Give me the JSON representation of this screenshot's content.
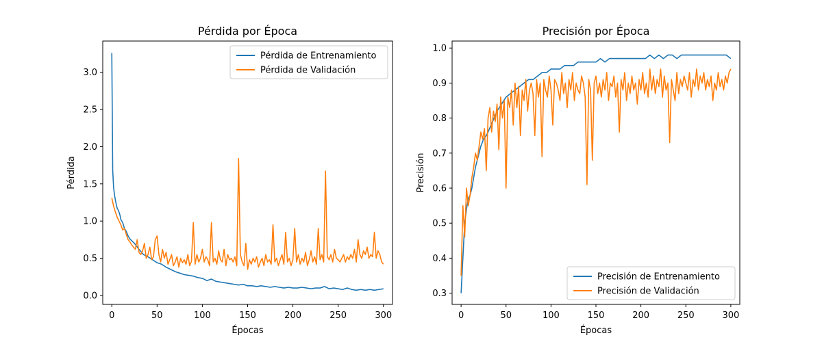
{
  "chart_data": [
    {
      "type": "line",
      "title": "Pérdida por Época",
      "xlabel": "Épocas",
      "ylabel": "Pérdida",
      "xlim": [
        -10,
        310
      ],
      "ylim": [
        -0.12,
        3.42
      ],
      "xticks": [
        0,
        50,
        100,
        150,
        200,
        250,
        300
      ],
      "yticks": [
        0.0,
        0.5,
        1.0,
        1.5,
        2.0,
        2.5,
        3.0
      ],
      "ytick_labels": [
        "0.0",
        "0.5",
        "1.0",
        "1.5",
        "2.0",
        "2.5",
        "3.0"
      ],
      "legend_position": "upper right",
      "grid": false,
      "series": [
        {
          "name": "Pérdida de Entrenamiento",
          "color": "#1f77b4",
          "x": [
            0,
            1,
            2,
            3,
            4,
            5,
            6,
            7,
            8,
            9,
            10,
            12,
            14,
            16,
            18,
            20,
            25,
            30,
            35,
            40,
            45,
            50,
            55,
            60,
            65,
            70,
            75,
            80,
            85,
            90,
            95,
            100,
            105,
            110,
            115,
            120,
            125,
            130,
            135,
            140,
            145,
            150,
            155,
            160,
            165,
            170,
            175,
            180,
            185,
            190,
            195,
            200,
            205,
            210,
            215,
            220,
            225,
            230,
            235,
            240,
            245,
            250,
            255,
            260,
            265,
            270,
            275,
            280,
            285,
            290,
            295,
            300
          ],
          "values": [
            3.26,
            1.68,
            1.45,
            1.35,
            1.28,
            1.22,
            1.17,
            1.15,
            1.12,
            1.08,
            1.02,
            0.98,
            0.9,
            0.86,
            0.8,
            0.76,
            0.7,
            0.62,
            0.55,
            0.52,
            0.48,
            0.44,
            0.42,
            0.38,
            0.35,
            0.32,
            0.3,
            0.28,
            0.27,
            0.26,
            0.24,
            0.23,
            0.2,
            0.22,
            0.19,
            0.18,
            0.17,
            0.16,
            0.15,
            0.14,
            0.15,
            0.13,
            0.13,
            0.12,
            0.13,
            0.12,
            0.11,
            0.12,
            0.11,
            0.1,
            0.11,
            0.1,
            0.1,
            0.11,
            0.1,
            0.09,
            0.1,
            0.1,
            0.12,
            0.09,
            0.1,
            0.09,
            0.08,
            0.1,
            0.08,
            0.07,
            0.08,
            0.07,
            0.08,
            0.07,
            0.08,
            0.09
          ]
        },
        {
          "name": "Pérdida de Validación",
          "color": "#ff7f0e",
          "x": [
            0,
            2,
            4,
            6,
            8,
            10,
            12,
            14,
            16,
            18,
            20,
            22,
            24,
            26,
            28,
            30,
            32,
            34,
            36,
            38,
            40,
            42,
            44,
            46,
            48,
            50,
            52,
            54,
            56,
            58,
            60,
            62,
            64,
            66,
            68,
            70,
            72,
            74,
            76,
            78,
            80,
            82,
            84,
            86,
            88,
            90,
            92,
            94,
            96,
            98,
            100,
            102,
            104,
            106,
            108,
            110,
            112,
            114,
            116,
            118,
            120,
            122,
            124,
            126,
            128,
            130,
            132,
            134,
            136,
            138,
            140,
            142,
            144,
            146,
            148,
            150,
            152,
            154,
            156,
            158,
            160,
            162,
            164,
            166,
            168,
            170,
            172,
            174,
            176,
            178,
            180,
            182,
            184,
            186,
            188,
            190,
            192,
            194,
            196,
            198,
            200,
            202,
            204,
            206,
            208,
            210,
            212,
            214,
            216,
            218,
            220,
            222,
            224,
            226,
            228,
            230,
            232,
            234,
            236,
            238,
            240,
            242,
            244,
            246,
            248,
            250,
            252,
            254,
            256,
            258,
            260,
            262,
            264,
            266,
            268,
            270,
            272,
            274,
            276,
            278,
            280,
            282,
            284,
            286,
            288,
            290,
            292,
            294,
            296,
            298,
            300
          ],
          "values": [
            1.31,
            1.2,
            1.12,
            1.05,
            1.0,
            0.95,
            0.88,
            0.9,
            0.82,
            0.75,
            0.72,
            0.68,
            0.65,
            0.62,
            0.75,
            0.58,
            0.55,
            0.6,
            0.7,
            0.5,
            0.55,
            0.65,
            0.48,
            0.52,
            0.75,
            0.8,
            0.55,
            0.45,
            0.62,
            0.5,
            0.58,
            0.42,
            0.48,
            0.55,
            0.4,
            0.45,
            0.52,
            0.38,
            0.5,
            0.44,
            0.48,
            0.42,
            0.55,
            0.4,
            0.46,
            0.98,
            0.42,
            0.55,
            0.45,
            0.5,
            0.62,
            0.45,
            0.52,
            0.48,
            0.4,
            0.98,
            0.45,
            0.5,
            0.42,
            0.6,
            0.48,
            0.45,
            0.62,
            0.4,
            0.55,
            0.48,
            0.5,
            0.45,
            0.52,
            0.4,
            1.84,
            0.55,
            0.45,
            0.4,
            0.7,
            0.35,
            0.48,
            0.42,
            0.5,
            0.45,
            0.52,
            0.38,
            0.45,
            0.5,
            0.4,
            0.55,
            0.45,
            0.48,
            0.42,
            0.95,
            0.45,
            0.5,
            0.4,
            0.48,
            0.55,
            0.42,
            0.85,
            0.45,
            0.5,
            0.4,
            0.48,
            0.9,
            0.45,
            0.55,
            0.42,
            0.5,
            0.45,
            0.58,
            0.4,
            0.48,
            0.6,
            0.45,
            0.52,
            0.42,
            0.9,
            0.48,
            0.55,
            0.45,
            1.67,
            0.52,
            0.48,
            0.55,
            0.45,
            0.62,
            0.5,
            0.48,
            0.45,
            0.5,
            0.55,
            0.45,
            0.52,
            0.48,
            0.55,
            0.5,
            0.62,
            0.45,
            0.75,
            0.55,
            0.5,
            0.6,
            0.55,
            0.65,
            0.5,
            0.55,
            0.52,
            0.85,
            0.5,
            0.6,
            0.55,
            0.45,
            0.42
          ]
        }
      ]
    },
    {
      "type": "line",
      "title": "Precisión por Época",
      "xlabel": "Épocas",
      "ylabel": "Precisión",
      "xlim": [
        -10,
        310
      ],
      "ylim": [
        0.268,
        1.02
      ],
      "xticks": [
        0,
        50,
        100,
        150,
        200,
        250,
        300
      ],
      "yticks": [
        0.3,
        0.4,
        0.5,
        0.6,
        0.7,
        0.8,
        0.9,
        1.0
      ],
      "ytick_labels": [
        "0.3",
        "0.4",
        "0.5",
        "0.6",
        "0.7",
        "0.8",
        "0.9",
        "1.0"
      ],
      "legend_position": "lower right",
      "grid": false,
      "series": [
        {
          "name": "Precisión de Entrenamiento",
          "color": "#1f77b4",
          "x": [
            0,
            2,
            4,
            6,
            8,
            10,
            12,
            14,
            16,
            18,
            20,
            22,
            25,
            28,
            30,
            35,
            40,
            45,
            50,
            55,
            60,
            65,
            70,
            75,
            80,
            85,
            90,
            95,
            100,
            105,
            110,
            115,
            120,
            125,
            130,
            135,
            140,
            145,
            150,
            155,
            160,
            165,
            170,
            175,
            180,
            185,
            190,
            195,
            200,
            205,
            210,
            215,
            220,
            225,
            230,
            235,
            240,
            245,
            250,
            255,
            260,
            265,
            270,
            275,
            280,
            285,
            290,
            295,
            300
          ],
          "values": [
            0.3,
            0.4,
            0.5,
            0.54,
            0.57,
            0.58,
            0.6,
            0.63,
            0.66,
            0.68,
            0.7,
            0.72,
            0.74,
            0.75,
            0.76,
            0.79,
            0.82,
            0.84,
            0.86,
            0.87,
            0.88,
            0.89,
            0.9,
            0.91,
            0.91,
            0.92,
            0.93,
            0.93,
            0.94,
            0.94,
            0.94,
            0.95,
            0.95,
            0.95,
            0.96,
            0.96,
            0.96,
            0.96,
            0.96,
            0.97,
            0.96,
            0.97,
            0.97,
            0.97,
            0.97,
            0.97,
            0.97,
            0.97,
            0.97,
            0.97,
            0.98,
            0.97,
            0.98,
            0.97,
            0.98,
            0.98,
            0.97,
            0.98,
            0.98,
            0.98,
            0.98,
            0.98,
            0.98,
            0.98,
            0.98,
            0.98,
            0.98,
            0.98,
            0.97
          ]
        },
        {
          "name": "Precisión de Validación",
          "color": "#ff7f0e",
          "x": [
            0,
            2,
            4,
            6,
            8,
            10,
            12,
            14,
            16,
            18,
            20,
            22,
            24,
            26,
            28,
            30,
            32,
            34,
            36,
            38,
            40,
            42,
            44,
            46,
            48,
            50,
            52,
            54,
            56,
            58,
            60,
            62,
            64,
            66,
            68,
            70,
            72,
            74,
            76,
            78,
            80,
            82,
            84,
            86,
            88,
            90,
            92,
            94,
            96,
            98,
            100,
            102,
            104,
            106,
            108,
            110,
            112,
            114,
            116,
            118,
            120,
            122,
            124,
            126,
            128,
            130,
            132,
            134,
            136,
            138,
            140,
            142,
            144,
            146,
            148,
            150,
            152,
            154,
            156,
            158,
            160,
            162,
            164,
            166,
            168,
            170,
            172,
            174,
            176,
            178,
            180,
            182,
            184,
            186,
            188,
            190,
            192,
            194,
            196,
            198,
            200,
            202,
            204,
            206,
            208,
            210,
            212,
            214,
            216,
            218,
            220,
            222,
            224,
            226,
            228,
            230,
            232,
            234,
            236,
            238,
            240,
            242,
            244,
            246,
            248,
            250,
            252,
            254,
            256,
            258,
            260,
            262,
            264,
            266,
            268,
            270,
            272,
            274,
            276,
            278,
            280,
            282,
            284,
            286,
            288,
            290,
            292,
            294,
            296,
            298,
            300
          ],
          "values": [
            0.35,
            0.55,
            0.46,
            0.6,
            0.55,
            0.58,
            0.63,
            0.66,
            0.7,
            0.68,
            0.72,
            0.76,
            0.74,
            0.77,
            0.65,
            0.8,
            0.83,
            0.76,
            0.82,
            0.79,
            0.84,
            0.71,
            0.86,
            0.8,
            0.85,
            0.6,
            0.86,
            0.83,
            0.88,
            0.78,
            0.9,
            0.83,
            0.89,
            0.75,
            0.88,
            0.85,
            0.91,
            0.82,
            0.88,
            0.9,
            0.87,
            0.75,
            0.91,
            0.86,
            0.9,
            0.69,
            0.91,
            0.88,
            0.86,
            0.92,
            0.88,
            0.78,
            0.91,
            0.9,
            0.88,
            0.85,
            0.93,
            0.87,
            0.9,
            0.83,
            0.91,
            0.88,
            0.93,
            0.85,
            0.9,
            0.88,
            0.87,
            0.92,
            0.9,
            0.86,
            0.61,
            0.91,
            0.88,
            0.68,
            0.9,
            0.92,
            0.87,
            0.9,
            0.86,
            0.91,
            0.88,
            0.93,
            0.85,
            0.9,
            0.89,
            0.92,
            0.86,
            0.9,
            0.76,
            0.91,
            0.88,
            0.93,
            0.85,
            0.9,
            0.87,
            0.92,
            0.88,
            0.9,
            0.84,
            0.91,
            0.88,
            0.93,
            0.87,
            0.9,
            0.86,
            0.94,
            0.88,
            0.92,
            0.87,
            0.91,
            0.89,
            0.94,
            0.86,
            0.92,
            0.88,
            0.9,
            0.73,
            0.91,
            0.88,
            0.85,
            0.93,
            0.87,
            0.91,
            0.89,
            0.92,
            0.9,
            0.88,
            0.93,
            0.86,
            0.91,
            0.89,
            0.94,
            0.88,
            0.92,
            0.9,
            0.93,
            0.88,
            0.91,
            0.89,
            0.92,
            0.85,
            0.9,
            0.88,
            0.93,
            0.89,
            0.91,
            0.88,
            0.92,
            0.9,
            0.93,
            0.94
          ]
        }
      ]
    }
  ]
}
